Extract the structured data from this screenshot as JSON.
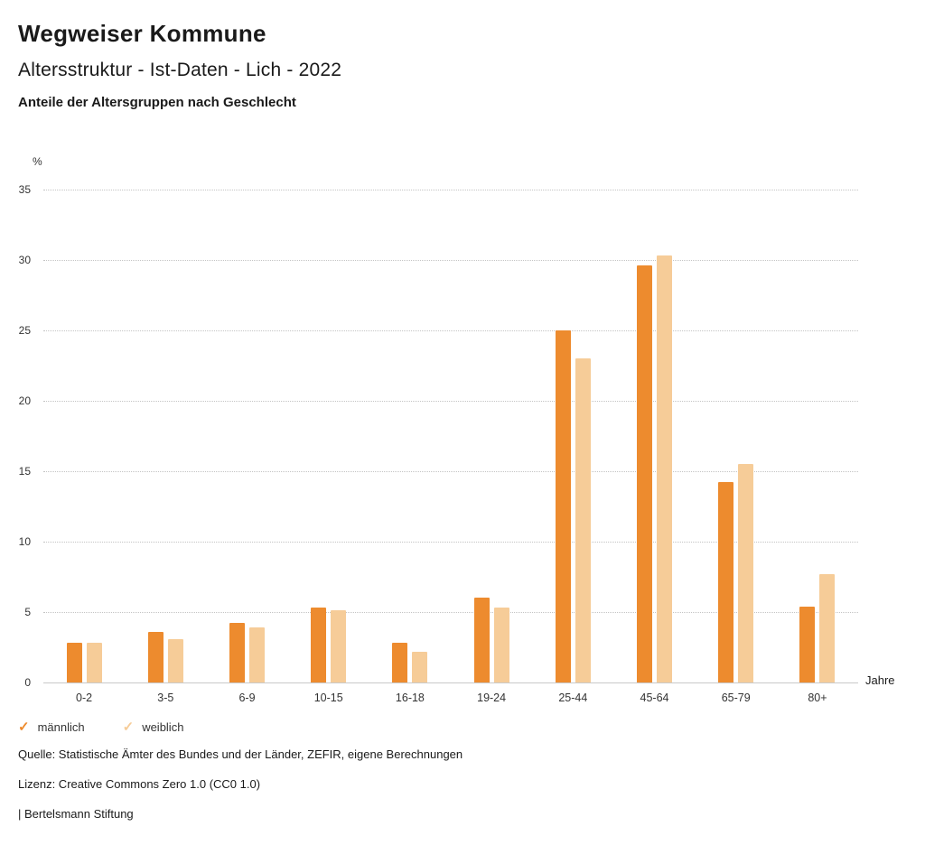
{
  "header": {
    "title": "Wegweiser Kommune",
    "subtitle": "Altersstruktur - Ist-Daten - Lich - 2022",
    "chart_heading": "Anteile der Altersgruppen nach Geschlecht"
  },
  "chart_data": {
    "type": "bar",
    "title": "Anteile der Altersgruppen nach Geschlecht",
    "categories": [
      "0-2",
      "3-5",
      "6-9",
      "10-15",
      "16-18",
      "19-24",
      "25-44",
      "45-64",
      "65-79",
      "80+"
    ],
    "series": [
      {
        "name": "männlich",
        "color": "#ed8b2e",
        "values": [
          2.8,
          3.6,
          4.2,
          5.3,
          2.8,
          6.0,
          25.0,
          29.6,
          14.2,
          5.4
        ]
      },
      {
        "name": "weiblich",
        "color": "#f6cc98",
        "values": [
          2.8,
          3.1,
          3.9,
          5.1,
          2.2,
          5.3,
          23.0,
          30.3,
          15.5,
          7.7
        ]
      }
    ],
    "ylabel": "%",
    "xlabel": "Jahre",
    "ylim": [
      0,
      35
    ],
    "yticks": [
      0,
      5,
      10,
      15,
      20,
      25,
      30,
      35
    ],
    "grid": "horizontal-dotted",
    "legend_position": "bottom"
  },
  "footer": {
    "source": "Quelle: Statistische Ämter des Bundes und der Länder, ZEFIR, eigene Berechnungen",
    "license": "Lizenz: Creative Commons Zero 1.0 (CC0 1.0)",
    "attribution": "| Bertelsmann Stiftung"
  }
}
